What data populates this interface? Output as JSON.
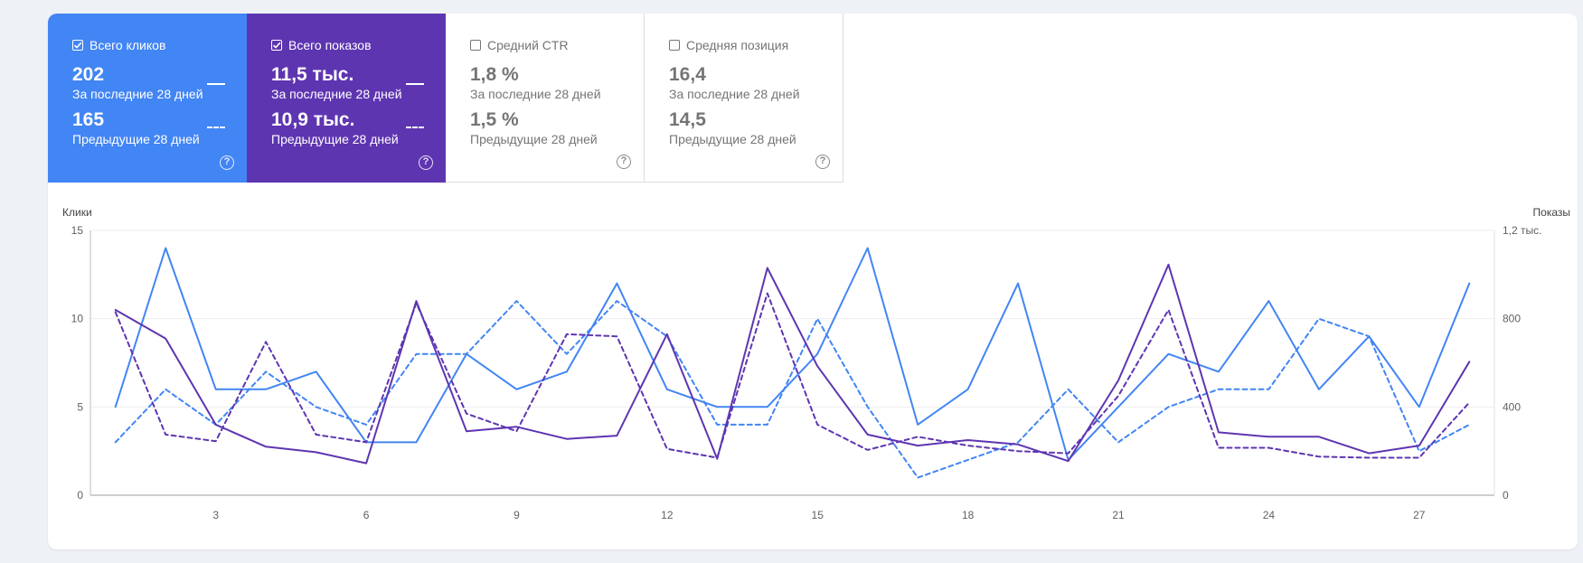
{
  "tiles": {
    "clicks": {
      "label": "Всего кликов",
      "current_value": "202",
      "current_label": "За последние 28 дней",
      "previous_value": "165",
      "previous_label": "Предыдущие 28 дней",
      "checked": true,
      "color": "#4285f4"
    },
    "impressions": {
      "label": "Всего показов",
      "current_value": "11,5 тыс.",
      "current_label": "За последние 28 дней",
      "previous_value": "10,9 тыс.",
      "previous_label": "Предыдущие 28 дней",
      "checked": true,
      "color": "#5e35b1"
    },
    "ctr": {
      "label": "Средний CTR",
      "current_value": "1,8 %",
      "current_label": "За последние 28 дней",
      "previous_value": "1,5 %",
      "previous_label": "Предыдущие 28 дней",
      "checked": false
    },
    "position": {
      "label": "Средняя позиция",
      "current_value": "16,4",
      "current_label": "За последние 28 дней",
      "previous_value": "14,5",
      "previous_label": "Предыдущие 28 дней",
      "checked": false
    },
    "help_glyph": "?"
  },
  "chart_data": {
    "type": "line",
    "x": [
      1,
      2,
      3,
      4,
      5,
      6,
      7,
      8,
      9,
      10,
      11,
      12,
      13,
      14,
      15,
      16,
      17,
      18,
      19,
      20,
      21,
      22,
      23,
      24,
      25,
      26,
      27,
      28
    ],
    "x_ticks": [
      3,
      6,
      9,
      12,
      15,
      18,
      21,
      24,
      27
    ],
    "left_axis": {
      "label": "Клики",
      "ylim": [
        0,
        15
      ],
      "ticks": [
        0,
        5,
        10,
        15
      ],
      "tick_labels": [
        "0",
        "5",
        "10",
        "15"
      ]
    },
    "right_axis": {
      "label": "Показы",
      "ylim": [
        0,
        1200
      ],
      "ticks": [
        0,
        400,
        800,
        1200
      ],
      "tick_labels": [
        "0",
        "400",
        "800",
        "1,2 тыс."
      ]
    },
    "series": [
      {
        "name": "Клики — за последние 28 дней",
        "axis": "left",
        "color": "#4285f4",
        "dashed": false,
        "values": [
          5,
          14,
          6,
          6,
          7,
          3,
          3,
          8,
          6,
          7,
          12,
          6,
          5,
          5,
          8,
          14,
          4,
          6,
          12,
          2,
          5,
          8,
          7,
          11,
          6,
          9,
          5,
          12
        ]
      },
      {
        "name": "Клики — предыдущие 28 дней",
        "axis": "left",
        "color": "#4285f4",
        "dashed": true,
        "values": [
          3,
          6,
          4,
          7,
          5,
          4,
          8,
          8,
          11,
          8,
          11,
          9,
          4,
          4,
          10,
          5,
          1,
          2,
          3,
          6,
          3,
          5,
          6,
          6,
          10,
          9,
          2.5,
          4
        ]
      },
      {
        "name": "Показы — за последние 28 дней",
        "axis": "right",
        "color": "#5e35b1",
        "dashed": false,
        "values": [
          840,
          710,
          320,
          220,
          195,
          145,
          880,
          290,
          310,
          255,
          270,
          730,
          165,
          1030,
          585,
          275,
          225,
          250,
          230,
          155,
          520,
          1045,
          285,
          265,
          265,
          190,
          225,
          605
        ]
      },
      {
        "name": "Показы — предыдущие 28 дней",
        "axis": "right",
        "color": "#5e35b1",
        "dashed": true,
        "values": [
          830,
          275,
          245,
          695,
          275,
          240,
          870,
          370,
          290,
          730,
          720,
          210,
          170,
          915,
          320,
          205,
          265,
          225,
          200,
          190,
          450,
          840,
          215,
          215,
          175,
          170,
          170,
          420
        ]
      }
    ]
  }
}
